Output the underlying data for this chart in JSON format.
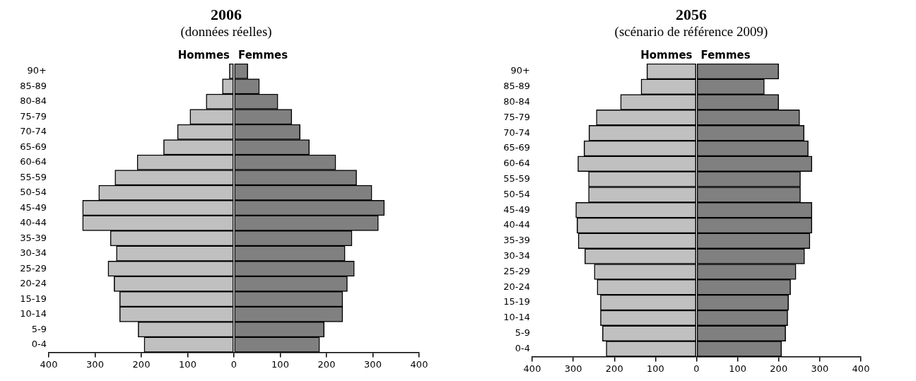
{
  "chart_data": [
    {
      "type": "bar",
      "title": "2006",
      "subtitle": "(données réelles)",
      "orientation": "horizontal",
      "stacked": true,
      "legend": false,
      "grid": false,
      "categories": [
        "90+",
        "85-89",
        "80-84",
        "75-79",
        "70-74",
        "65-69",
        "60-64",
        "55-59",
        "50-54",
        "45-49",
        "40-44",
        "35-39",
        "30-34",
        "25-29",
        "20-24",
        "15-19",
        "10-14",
        "5-9",
        "0-4"
      ],
      "series": [
        {
          "name": "Hommes",
          "color": "#c0c0c0",
          "values": [
            -10,
            -25,
            -60,
            -95,
            -122,
            -152,
            -209,
            -257,
            -292,
            -327,
            -327,
            -267,
            -254,
            -272,
            -259,
            -247,
            -247,
            -207,
            -194
          ]
        },
        {
          "name": "Femmes",
          "color": "#808080",
          "values": [
            30,
            55,
            95,
            125,
            143,
            163,
            220,
            265,
            298,
            325,
            312,
            255,
            240,
            260,
            245,
            235,
            235,
            195,
            185
          ]
        }
      ],
      "xlim": [
        -400,
        400
      ],
      "xticks": [
        {
          "value": -400,
          "label": "400"
        },
        {
          "value": -300,
          "label": "300"
        },
        {
          "value": -200,
          "label": "200"
        },
        {
          "value": -100,
          "label": "100"
        },
        0,
        100,
        200,
        300,
        400
      ]
    },
    {
      "type": "bar",
      "title": "2056",
      "subtitle": "(scénario de référence 2009)",
      "orientation": "horizontal",
      "stacked": true,
      "legend": false,
      "grid": false,
      "categories": [
        "90+",
        "85-89",
        "80-84",
        "75-79",
        "70-74",
        "65-69",
        "60-64",
        "55-59",
        "50-54",
        "45-49",
        "40-44",
        "35-39",
        "30-34",
        "25-29",
        "20-24",
        "15-19",
        "10-14",
        "5-9",
        "0-4"
      ],
      "series": [
        {
          "name": "Hommes",
          "color": "#c0c0c0",
          "values": [
            -121,
            -135,
            -185,
            -244,
            -262,
            -274,
            -289,
            -263,
            -263,
            -294,
            -291,
            -288,
            -272,
            -249,
            -242,
            -234,
            -234,
            -229,
            -220
          ]
        },
        {
          "name": "Femmes",
          "color": "#808080",
          "values": [
            200,
            165,
            200,
            251,
            262,
            272,
            281,
            253,
            253,
            281,
            281,
            276,
            263,
            242,
            229,
            224,
            222,
            217,
            207
          ]
        }
      ],
      "xlim": [
        -400,
        400
      ],
      "xticks": [
        {
          "value": -400,
          "label": "400"
        },
        {
          "value": -300,
          "label": "300"
        },
        {
          "value": -200,
          "label": "200"
        },
        {
          "value": -100,
          "label": "100"
        },
        0,
        100,
        200,
        300,
        400
      ]
    }
  ]
}
